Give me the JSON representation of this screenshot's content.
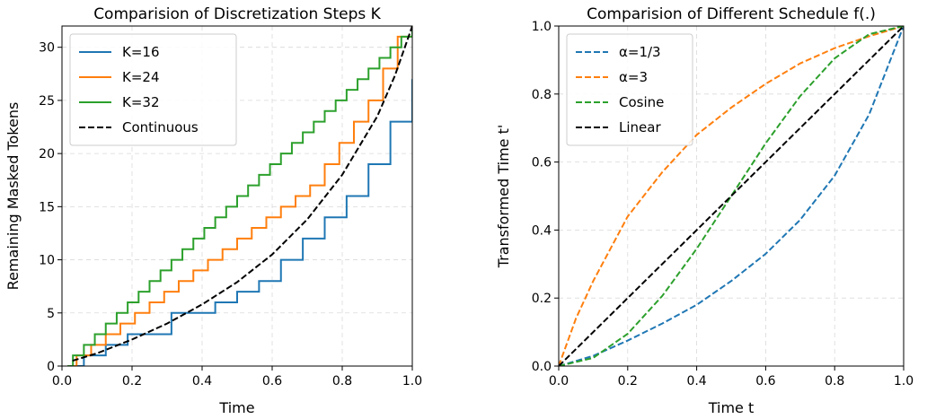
{
  "chart_data": [
    {
      "type": "line",
      "title": "Comparision of Discretization Steps K",
      "xlabel": "Time",
      "ylabel": "Remaining Masked Tokens",
      "xlim": [
        0,
        1
      ],
      "ylim": [
        0,
        32
      ],
      "xticks": [
        0.0,
        0.2,
        0.4,
        0.6,
        0.8,
        1.0
      ],
      "xtick_labels": [
        "0.0",
        "0.2",
        "0.4",
        "0.6",
        "0.8",
        "1.0"
      ],
      "yticks": [
        0,
        5,
        10,
        15,
        20,
        25,
        30
      ],
      "ytick_labels": [
        "0",
        "5",
        "10",
        "15",
        "20",
        "25",
        "30"
      ],
      "grid": true,
      "legend_position": "top-left",
      "series": [
        {
          "name": "K=16",
          "style": "step",
          "color": "#1f77b4",
          "x": [
            0.0625,
            0.125,
            0.1875,
            0.25,
            0.3125,
            0.375,
            0.4375,
            0.5,
            0.5625,
            0.625,
            0.6875,
            0.75,
            0.8125,
            0.875,
            0.9375,
            1.0
          ],
          "y": [
            1,
            2,
            3,
            3,
            5,
            5,
            6,
            7,
            8,
            10,
            12,
            14,
            16,
            19,
            23,
            27
          ]
        },
        {
          "name": "K=24",
          "style": "step",
          "color": "#ff7f0e",
          "x": [
            0.0417,
            0.0833,
            0.125,
            0.1667,
            0.2083,
            0.25,
            0.2917,
            0.3333,
            0.375,
            0.4167,
            0.4583,
            0.5,
            0.5417,
            0.5833,
            0.625,
            0.6667,
            0.7083,
            0.75,
            0.7917,
            0.8333,
            0.875,
            0.9167,
            0.9583,
            1.0
          ],
          "y": [
            1,
            2,
            3,
            4,
            5,
            6,
            7,
            8,
            9,
            10,
            11,
            12,
            13,
            14,
            15,
            16,
            17,
            19,
            21,
            23,
            25,
            28,
            31,
            32
          ]
        },
        {
          "name": "K=32",
          "style": "step",
          "color": "#2ca02c",
          "x": [
            0.03125,
            0.0625,
            0.09375,
            0.125,
            0.15625,
            0.1875,
            0.21875,
            0.25,
            0.28125,
            0.3125,
            0.34375,
            0.375,
            0.40625,
            0.4375,
            0.46875,
            0.5,
            0.53125,
            0.5625,
            0.59375,
            0.625,
            0.65625,
            0.6875,
            0.71875,
            0.75,
            0.78125,
            0.8125,
            0.84375,
            0.875,
            0.90625,
            0.9375,
            0.96875,
            1.0
          ],
          "y": [
            1,
            2,
            3,
            4,
            5,
            6,
            7,
            8,
            9,
            10,
            11,
            12,
            13,
            14,
            15,
            16,
            17,
            18,
            19,
            20,
            21,
            22,
            23,
            24,
            25,
            26,
            27,
            28,
            29,
            30,
            31,
            32
          ]
        },
        {
          "name": "Continuous",
          "style": "dashed",
          "color": "#000000",
          "x": [
            0.03,
            0.1,
            0.2,
            0.3,
            0.4,
            0.5,
            0.6,
            0.7,
            0.8,
            0.9,
            0.95,
            1.0
          ],
          "y": [
            0.5,
            1.2,
            2.5,
            4.0,
            5.8,
            7.9,
            10.5,
            13.8,
            18.0,
            23.5,
            27.3,
            32.0
          ]
        }
      ]
    },
    {
      "type": "line",
      "title": "Comparision of Different Schedule f(.)",
      "xlabel": "Time t",
      "ylabel": "Transformed Time t'",
      "xlim": [
        0,
        1
      ],
      "ylim": [
        0,
        1
      ],
      "xticks": [
        0.0,
        0.2,
        0.4,
        0.6,
        0.8,
        1.0
      ],
      "xtick_labels": [
        "0.0",
        "0.2",
        "0.4",
        "0.6",
        "0.8",
        "1.0"
      ],
      "yticks": [
        0.0,
        0.2,
        0.4,
        0.6,
        0.8,
        1.0
      ],
      "ytick_labels": [
        "0.0",
        "0.2",
        "0.4",
        "0.6",
        "0.8",
        "1.0"
      ],
      "grid": true,
      "legend_position": "top-left",
      "series": [
        {
          "name": "α=1/3",
          "style": "dashed",
          "color": "#1f77b4",
          "x": [
            0.0,
            0.1,
            0.2,
            0.3,
            0.4,
            0.5,
            0.6,
            0.7,
            0.8,
            0.9,
            1.0
          ],
          "y": [
            0.0,
            0.03,
            0.075,
            0.125,
            0.18,
            0.25,
            0.33,
            0.43,
            0.56,
            0.74,
            1.0
          ]
        },
        {
          "name": "α=3",
          "style": "dashed",
          "color": "#ff7f0e",
          "x": [
            0.0,
            0.05,
            0.1,
            0.2,
            0.3,
            0.4,
            0.5,
            0.6,
            0.7,
            0.8,
            0.9,
            1.0
          ],
          "y": [
            0.0,
            0.14,
            0.25,
            0.44,
            0.57,
            0.68,
            0.76,
            0.83,
            0.89,
            0.935,
            0.97,
            1.0
          ]
        },
        {
          "name": "Cosine",
          "style": "dashed",
          "color": "#2ca02c",
          "x": [
            0.0,
            0.1,
            0.2,
            0.3,
            0.4,
            0.5,
            0.6,
            0.7,
            0.8,
            0.9,
            1.0
          ],
          "y": [
            0.0,
            0.024,
            0.095,
            0.206,
            0.345,
            0.5,
            0.655,
            0.794,
            0.905,
            0.976,
            1.0
          ]
        },
        {
          "name": "Linear",
          "style": "dashed",
          "color": "#000000",
          "x": [
            0.0,
            1.0
          ],
          "y": [
            0.0,
            1.0
          ]
        }
      ]
    }
  ]
}
